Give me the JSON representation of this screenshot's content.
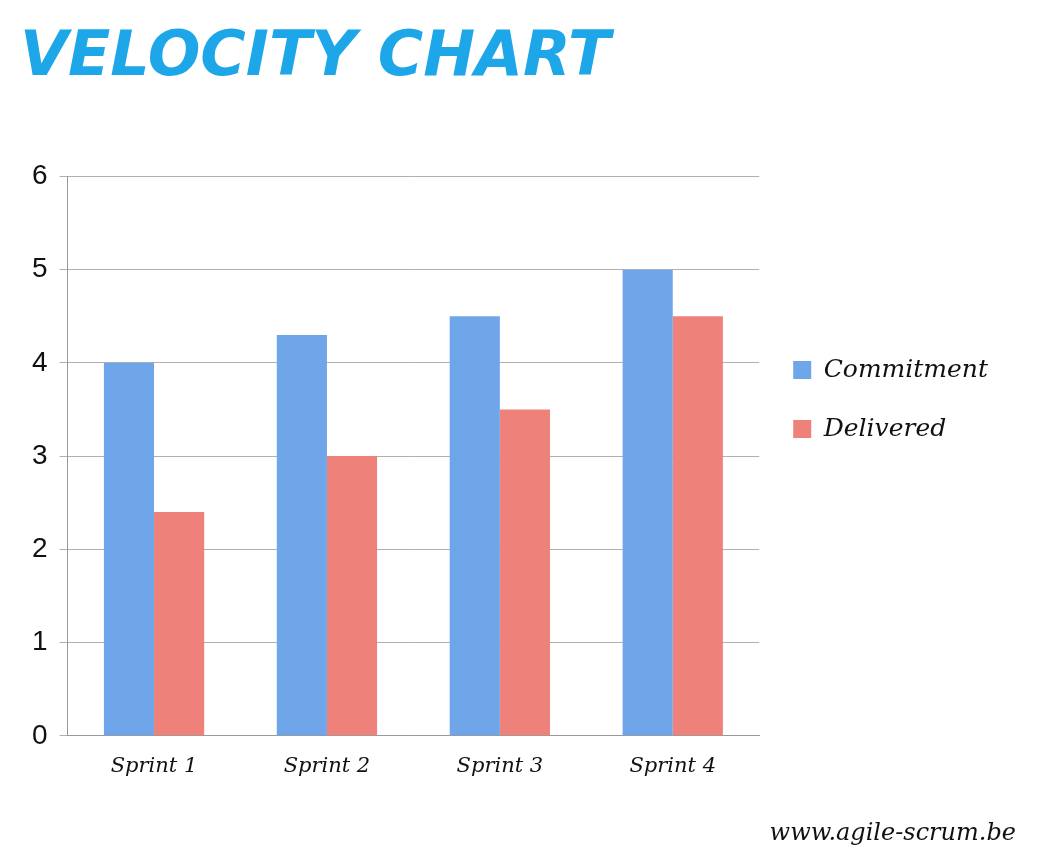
{
  "chart_data": {
    "type": "bar",
    "title": "VELOCITY CHART",
    "annotation": "www.agile-scrum.be",
    "categories": [
      "Sprint 1",
      "Sprint 2",
      "Sprint 3",
      "Sprint 4"
    ],
    "series": [
      {
        "name": "Commitment",
        "color": "#6fa6ea",
        "values": [
          4,
          4.3,
          4.5,
          5
        ]
      },
      {
        "name": "Delivered",
        "color": "#ee827b",
        "values": [
          2.4,
          3,
          3.5,
          4.5
        ]
      }
    ],
    "ylim": [
      0,
      6
    ],
    "yticks": [
      0,
      1,
      2,
      3,
      4,
      5,
      6
    ],
    "grid": true,
    "legend": "right"
  }
}
